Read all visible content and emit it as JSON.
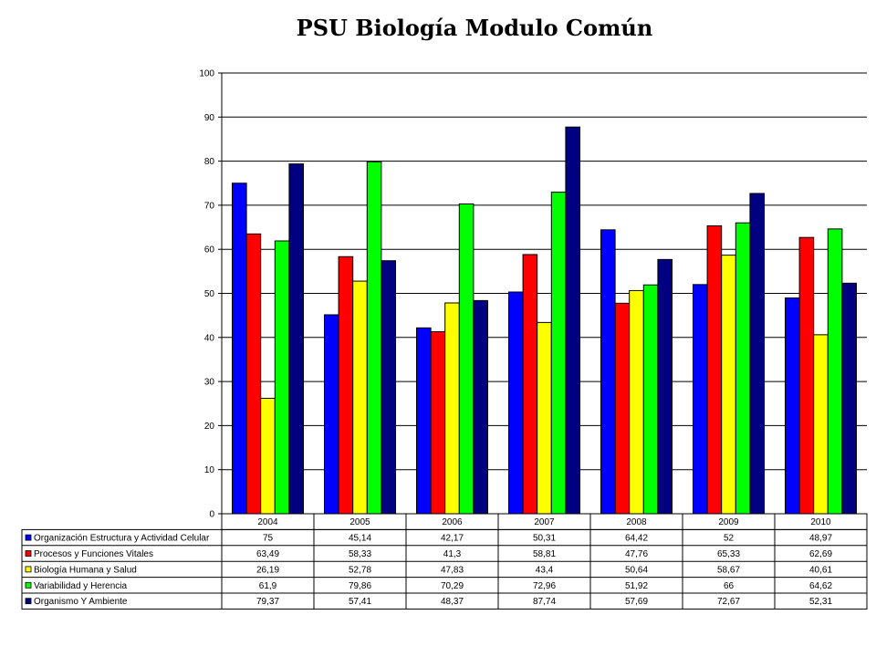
{
  "chart_data": {
    "type": "bar",
    "title": "PSU Biología Modulo Común",
    "xlabel": "",
    "ylabel": "",
    "ylim": [
      0,
      100
    ],
    "yticks": [
      "0",
      "10",
      "20",
      "30",
      "40",
      "50",
      "60",
      "70",
      "80",
      "90",
      "100"
    ],
    "grid": true,
    "legend": "data-table-below",
    "categories": [
      "2004",
      "2005",
      "2006",
      "2007",
      "2008",
      "2009",
      "2010"
    ],
    "series": [
      {
        "name": "Organización Estructura y Actividad Celular",
        "color": "#0000ff",
        "values": [
          75,
          45.14,
          42.17,
          50.31,
          64.42,
          52,
          48.97
        ],
        "labels": [
          "75",
          "45,14",
          "42,17",
          "50,31",
          "64,42",
          "52",
          "48,97"
        ]
      },
      {
        "name": "Procesos y Funciones Vitales",
        "color": "#ff0000",
        "values": [
          63.49,
          58.33,
          41.3,
          58.81,
          47.76,
          65.33,
          62.69
        ],
        "labels": [
          "63,49",
          "58,33",
          "41,3",
          "58,81",
          "47,76",
          "65,33",
          "62,69"
        ]
      },
      {
        "name": "Biología Humana y Salud",
        "color": "#ffff00",
        "values": [
          26.19,
          52.78,
          47.83,
          43.4,
          50.64,
          58.67,
          40.61
        ],
        "labels": [
          "26,19",
          "52,78",
          "47,83",
          "43,4",
          "50,64",
          "58,67",
          "40,61"
        ]
      },
      {
        "name": "Variabilidad y Herencia",
        "color": "#00ff00",
        "values": [
          61.9,
          79.86,
          70.29,
          72.96,
          51.92,
          66,
          64.62
        ],
        "labels": [
          "61,9",
          "79,86",
          "70,29",
          "72,96",
          "51,92",
          "66",
          "64,62"
        ]
      },
      {
        "name": "Organismo Y Ambiente",
        "color": "#000080",
        "values": [
          79.37,
          57.41,
          48.37,
          87.74,
          57.69,
          72.67,
          52.31
        ],
        "labels": [
          "79,37",
          "57,41",
          "48,37",
          "87,74",
          "57,69",
          "72,67",
          "52,31"
        ]
      }
    ]
  }
}
